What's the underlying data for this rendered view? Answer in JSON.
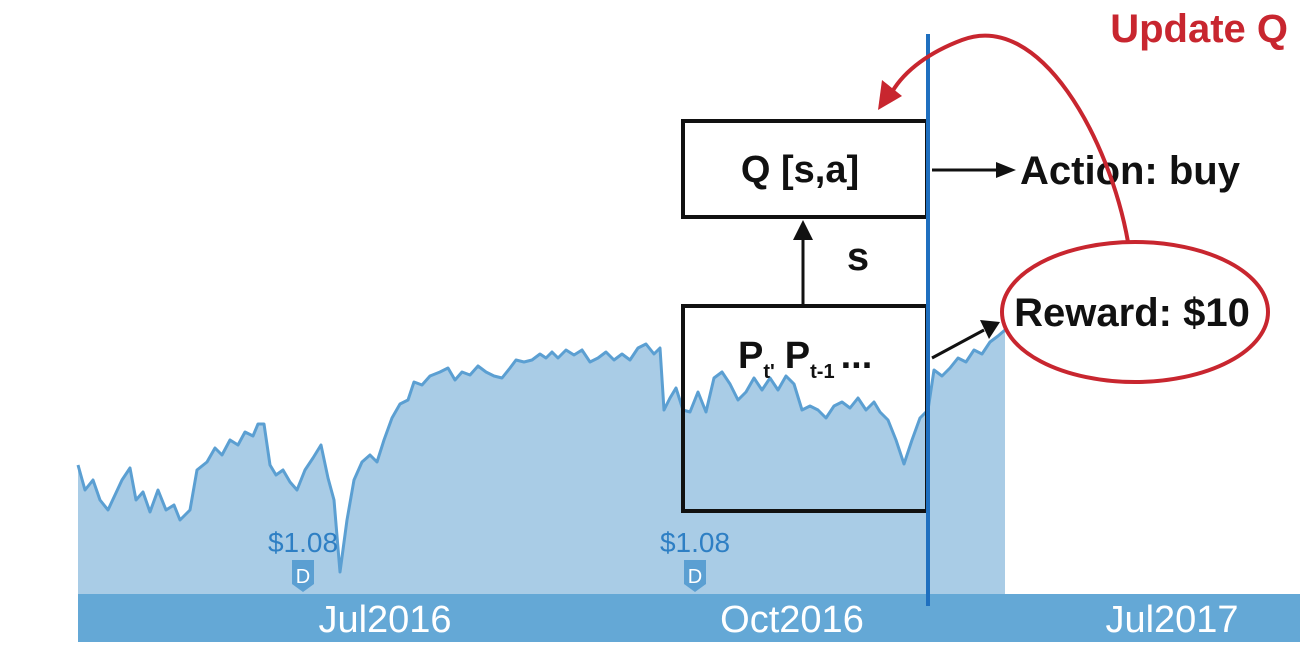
{
  "axis": {
    "labels": [
      "Jul2016",
      "Oct2016",
      "Jul2017"
    ]
  },
  "dividends": [
    {
      "amount": "$1.08",
      "marker": "D"
    },
    {
      "amount": "$1.08",
      "marker": "D"
    }
  ],
  "qtable": {
    "label": "Q [s,a]"
  },
  "state": {
    "label": "s"
  },
  "prices": {
    "p": "P",
    "t": "t'",
    "p2": "P",
    "t1": "t-1",
    "ellipsis": "..."
  },
  "action": {
    "label": "Action: buy"
  },
  "reward": {
    "label": "Reward: $10"
  },
  "update": {
    "label": "Update Q"
  },
  "colors": {
    "area_fill": "#a9cce6",
    "area_line": "#5b9fd2",
    "axis_bar": "#64a8d6",
    "cursor_line": "#1f6fbf",
    "update": "#c8262f",
    "box": "#111111"
  }
}
